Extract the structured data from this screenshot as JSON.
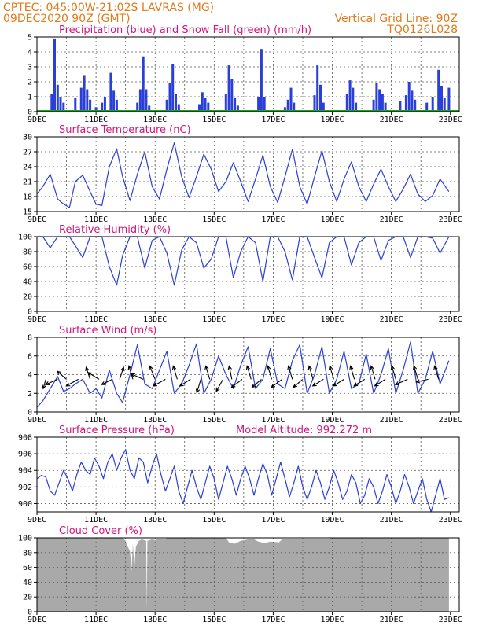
{
  "header": {
    "line1": "CPTEC:   045:00W-21:02S  LAVRAS (MG)",
    "line2": "09DEC2020 90Z (GMT)",
    "grid_note": "Vertical Grid Line: 90Z",
    "code": "TQ0126L028"
  },
  "colors": {
    "header": "#e07a1a",
    "title": "#d4147a",
    "series": "#2a3fd8",
    "snow": "#1aa01a",
    "cloud": "#a9a9a9",
    "grid": "#555555"
  },
  "x_ticks": [
    "9DEC",
    "11DEC",
    "13DEC",
    "15DEC",
    "17DEC",
    "19DEC",
    "21DEC",
    "23DEC"
  ],
  "chart_data": [
    {
      "type": "bar",
      "title": "Precipitation (blue) and Snow Fall (green) (mm/h)",
      "ylim": [
        0,
        5
      ],
      "yticks": [
        0,
        1,
        2,
        3,
        4,
        5
      ],
      "x_days": [
        0.5,
        0.6,
        0.7,
        0.8,
        0.9,
        1.3,
        1.5,
        1.6,
        1.7,
        1.8,
        2.0,
        2.2,
        2.3,
        2.5,
        2.6,
        2.7,
        3.4,
        3.5,
        3.6,
        3.7,
        3.8,
        4.4,
        4.5,
        4.6,
        4.7,
        4.8,
        5.5,
        5.6,
        5.7,
        5.8,
        6.4,
        6.5,
        6.6,
        6.7,
        6.8,
        7.5,
        7.6,
        7.7,
        8.4,
        8.5,
        8.6,
        8.7,
        9.4,
        9.5,
        9.6,
        9.7,
        10.5,
        10.6,
        10.7,
        10.8,
        11.4,
        11.5,
        11.6,
        11.7,
        11.8,
        12.3,
        12.5,
        12.6,
        12.7,
        12.8,
        13.2,
        13.4,
        13.6,
        13.7,
        13.8,
        13.95
      ],
      "values": [
        1.2,
        4.9,
        1.8,
        1.0,
        0.6,
        0.9,
        1.6,
        2.4,
        1.5,
        0.8,
        0.3,
        0.6,
        1.0,
        2.6,
        1.4,
        0.8,
        0.6,
        1.5,
        3.7,
        1.5,
        0.4,
        0.8,
        1.9,
        3.2,
        1.2,
        0.5,
        0.5,
        1.3,
        0.9,
        0.6,
        1.2,
        3.1,
        2.2,
        0.9,
        0.4,
        1.0,
        4.2,
        1.0,
        0.3,
        0.8,
        1.6,
        0.6,
        1.1,
        3.1,
        1.8,
        0.6,
        1.2,
        2.1,
        1.6,
        0.6,
        0.8,
        1.9,
        1.5,
        1.2,
        0.6,
        0.7,
        1.1,
        2.0,
        1.4,
        0.8,
        0.6,
        1.0,
        2.8,
        1.7,
        0.9,
        1.6
      ],
      "snow": 0
    },
    {
      "type": "line",
      "title": "Surface Temperature (nC)",
      "ylim": [
        15,
        30
      ],
      "yticks": [
        15,
        18,
        21,
        24,
        27,
        30
      ],
      "x_days": [
        0.0,
        0.2,
        0.45,
        0.7,
        0.9,
        1.1,
        1.3,
        1.55,
        1.8,
        2.0,
        2.2,
        2.45,
        2.7,
        2.9,
        3.15,
        3.4,
        3.65,
        3.9,
        4.15,
        4.4,
        4.65,
        4.9,
        5.15,
        5.4,
        5.65,
        5.9,
        6.15,
        6.4,
        6.65,
        6.9,
        7.15,
        7.4,
        7.65,
        7.9,
        8.15,
        8.4,
        8.65,
        8.9,
        9.15,
        9.4,
        9.65,
        9.9,
        10.15,
        10.4,
        10.65,
        10.9,
        11.15,
        11.4,
        11.65,
        11.9,
        12.15,
        12.4,
        12.65,
        12.9,
        13.15,
        13.4,
        13.65,
        13.95
      ],
      "values": [
        18.5,
        20.0,
        22.5,
        17.5,
        16.5,
        15.8,
        21.0,
        22.3,
        19.0,
        16.5,
        16.2,
        24.0,
        27.6,
        22.0,
        17.2,
        22.5,
        27.0,
        20.0,
        17.5,
        23.5,
        28.8,
        22.0,
        17.8,
        22.0,
        26.5,
        23.5,
        19.0,
        21.0,
        24.8,
        21.0,
        17.0,
        21.5,
        26.3,
        20.0,
        16.8,
        22.0,
        27.5,
        20.0,
        16.5,
        22.0,
        27.2,
        21.0,
        17.0,
        21.5,
        25.0,
        20.0,
        17.0,
        20.5,
        23.5,
        20.0,
        17.0,
        19.5,
        22.5,
        18.5,
        17.0,
        18.2,
        21.5,
        19.0
      ]
    },
    {
      "type": "line",
      "title": "Relative Humidity (%)",
      "ylim": [
        0,
        100
      ],
      "yticks": [
        0,
        20,
        40,
        60,
        80,
        100
      ],
      "x_days": [
        0.0,
        0.2,
        0.45,
        0.7,
        0.9,
        1.1,
        1.3,
        1.55,
        1.8,
        2.0,
        2.2,
        2.45,
        2.7,
        2.9,
        3.15,
        3.4,
        3.65,
        3.9,
        4.15,
        4.4,
        4.65,
        4.9,
        5.15,
        5.4,
        5.65,
        5.9,
        6.15,
        6.4,
        6.65,
        6.9,
        7.15,
        7.4,
        7.65,
        7.9,
        8.15,
        8.4,
        8.65,
        8.9,
        9.15,
        9.4,
        9.65,
        9.9,
        10.15,
        10.4,
        10.65,
        10.9,
        11.15,
        11.4,
        11.65,
        11.9,
        12.15,
        12.4,
        12.65,
        12.9,
        13.15,
        13.4,
        13.65,
        13.95
      ],
      "values": [
        100,
        100,
        85,
        100,
        100,
        100,
        88,
        72,
        100,
        100,
        100,
        60,
        35,
        75,
        100,
        100,
        58,
        95,
        100,
        78,
        35,
        82,
        100,
        92,
        58,
        70,
        100,
        100,
        45,
        80,
        100,
        92,
        40,
        100,
        100,
        80,
        42,
        100,
        100,
        72,
        45,
        92,
        100,
        100,
        62,
        92,
        100,
        100,
        68,
        95,
        100,
        100,
        72,
        100,
        100,
        98,
        78,
        100
      ]
    },
    {
      "type": "line",
      "title": "Surface Wind (m/s)",
      "ylim": [
        0,
        8
      ],
      "yticks": [
        0,
        2,
        4,
        6,
        8
      ],
      "x_days": [
        0.0,
        0.2,
        0.45,
        0.7,
        0.9,
        1.1,
        1.3,
        1.55,
        1.8,
        2.0,
        2.2,
        2.45,
        2.7,
        2.9,
        3.15,
        3.4,
        3.65,
        3.9,
        4.15,
        4.4,
        4.65,
        4.9,
        5.15,
        5.4,
        5.65,
        5.9,
        6.15,
        6.4,
        6.65,
        6.9,
        7.15,
        7.4,
        7.65,
        7.9,
        8.15,
        8.4,
        8.65,
        8.9,
        9.15,
        9.4,
        9.65,
        9.9,
        10.15,
        10.4,
        10.65,
        10.9,
        11.15,
        11.4,
        11.65,
        11.9,
        12.15,
        12.4,
        12.65,
        12.9,
        13.15,
        13.4,
        13.65,
        13.95
      ],
      "values": [
        0.5,
        1.2,
        2.5,
        3.8,
        2.2,
        2.5,
        3.0,
        3.5,
        2.0,
        2.5,
        1.5,
        4.5,
        2.0,
        1.0,
        4.0,
        7.2,
        3.0,
        2.5,
        4.5,
        6.5,
        2.0,
        3.0,
        5.0,
        7.3,
        2.0,
        3.5,
        6.0,
        4.0,
        2.5,
        5.0,
        7.0,
        2.5,
        3.5,
        6.8,
        3.0,
        2.5,
        5.5,
        7.2,
        2.0,
        4.0,
        7.0,
        2.0,
        3.5,
        6.5,
        2.5,
        3.0,
        6.2,
        2.0,
        4.0,
        6.8,
        2.0,
        4.5,
        7.5,
        2.0,
        3.5,
        6.5,
        3.0,
        5.5
      ],
      "vectors": [
        {
          "day": 0.3,
          "dx": -0.2,
          "dy": 0.7
        },
        {
          "day": 0.7,
          "dx": -0.9,
          "dy": 0.4
        },
        {
          "day": 1.0,
          "dx": -0.7,
          "dy": -0.6
        },
        {
          "day": 1.4,
          "dx": -0.9,
          "dy": 0.5
        },
        {
          "day": 1.8,
          "dx": -0.3,
          "dy": -0.9
        },
        {
          "day": 2.1,
          "dx": -0.8,
          "dy": -0.5
        },
        {
          "day": 2.55,
          "dx": -0.8,
          "dy": 0.4
        },
        {
          "day": 2.8,
          "dx": 0.3,
          "dy": -0.9
        },
        {
          "day": 3.25,
          "dx": -0.3,
          "dy": -1.0
        },
        {
          "day": 3.6,
          "dx": -0.9,
          "dy": -0.4
        },
        {
          "day": 4.0,
          "dx": -0.4,
          "dy": -1.0
        },
        {
          "day": 4.35,
          "dx": -0.9,
          "dy": 0.5
        },
        {
          "day": 4.75,
          "dx": -0.3,
          "dy": -1.0
        },
        {
          "day": 5.2,
          "dx": -0.8,
          "dy": 0.5
        },
        {
          "day": 5.55,
          "dx": -0.3,
          "dy": 1.0
        },
        {
          "day": 5.85,
          "dx": -0.3,
          "dy": -1.0
        },
        {
          "day": 6.3,
          "dx": -0.5,
          "dy": 0.9
        },
        {
          "day": 6.6,
          "dx": -0.2,
          "dy": -1.0
        },
        {
          "day": 6.95,
          "dx": -0.8,
          "dy": 0.6
        },
        {
          "day": 7.25,
          "dx": -0.3,
          "dy": -1.0
        },
        {
          "day": 7.6,
          "dx": -0.7,
          "dy": 0.6
        },
        {
          "day": 7.95,
          "dx": -0.3,
          "dy": -1.0
        },
        {
          "day": 8.3,
          "dx": -0.8,
          "dy": 0.6
        },
        {
          "day": 8.65,
          "dx": -0.3,
          "dy": -1.0
        },
        {
          "day": 9.0,
          "dx": -0.7,
          "dy": 0.6
        },
        {
          "day": 9.35,
          "dx": -0.3,
          "dy": -1.0
        },
        {
          "day": 9.7,
          "dx": -0.8,
          "dy": 0.5
        },
        {
          "day": 10.05,
          "dx": -0.3,
          "dy": -1.0
        },
        {
          "day": 10.4,
          "dx": -0.8,
          "dy": 0.5
        },
        {
          "day": 10.75,
          "dx": -0.3,
          "dy": -1.0
        },
        {
          "day": 11.1,
          "dx": -0.8,
          "dy": 0.5
        },
        {
          "day": 11.45,
          "dx": -0.3,
          "dy": -1.0
        },
        {
          "day": 11.8,
          "dx": -0.8,
          "dy": 0.5
        },
        {
          "day": 12.15,
          "dx": -0.3,
          "dy": -1.0
        },
        {
          "day": 12.55,
          "dx": -0.9,
          "dy": 0.4
        },
        {
          "day": 12.9,
          "dx": -0.3,
          "dy": -1.0
        },
        {
          "day": 13.25,
          "dx": -0.9,
          "dy": 0.2
        },
        {
          "day": 13.6,
          "dx": -0.3,
          "dy": -1.0
        }
      ]
    },
    {
      "type": "line",
      "title": "Surface Pressure (hPa)",
      "annotation": "Model Altitude: 992.272 m",
      "ylim": [
        899,
        908
      ],
      "yticks": [
        900,
        902,
        904,
        906,
        908
      ],
      "x_days": [
        0.0,
        0.15,
        0.3,
        0.45,
        0.6,
        0.75,
        0.9,
        1.05,
        1.2,
        1.35,
        1.5,
        1.65,
        1.8,
        1.95,
        2.1,
        2.25,
        2.4,
        2.55,
        2.7,
        2.85,
        3.0,
        3.15,
        3.3,
        3.45,
        3.6,
        3.75,
        3.9,
        4.05,
        4.2,
        4.35,
        4.5,
        4.65,
        4.8,
        4.95,
        5.1,
        5.25,
        5.4,
        5.55,
        5.7,
        5.85,
        6.0,
        6.15,
        6.3,
        6.45,
        6.6,
        6.75,
        6.9,
        7.05,
        7.2,
        7.35,
        7.5,
        7.65,
        7.8,
        7.95,
        8.1,
        8.25,
        8.4,
        8.55,
        8.7,
        8.85,
        9.0,
        9.15,
        9.3,
        9.45,
        9.6,
        9.75,
        9.9,
        10.05,
        10.2,
        10.35,
        10.5,
        10.65,
        10.8,
        10.95,
        11.1,
        11.25,
        11.4,
        11.55,
        11.7,
        11.85,
        12.0,
        12.15,
        12.3,
        12.45,
        12.6,
        12.75,
        12.9,
        13.05,
        13.2,
        13.35,
        13.5,
        13.65,
        13.8,
        13.95
      ],
      "values": [
        903.0,
        903.4,
        903.2,
        901.5,
        901.0,
        902.5,
        904.0,
        903.0,
        901.5,
        903.5,
        905.0,
        904.0,
        903.5,
        905.5,
        904.5,
        903.0,
        905.0,
        906.0,
        904.0,
        905.5,
        906.5,
        904.0,
        903.0,
        905.5,
        905.0,
        902.5,
        904.5,
        906.0,
        903.5,
        901.5,
        903.0,
        904.5,
        901.5,
        900.0,
        902.0,
        904.0,
        902.0,
        900.5,
        902.5,
        904.5,
        903.0,
        900.5,
        902.5,
        904.5,
        903.0,
        901.0,
        903.0,
        904.5,
        903.0,
        901.0,
        903.0,
        904.8,
        903.5,
        901.0,
        903.0,
        905.0,
        903.0,
        900.8,
        902.5,
        904.5,
        902.0,
        900.5,
        902.0,
        904.0,
        902.5,
        900.5,
        902.0,
        904.0,
        902.5,
        900.5,
        901.5,
        903.5,
        902.5,
        900.0,
        901.0,
        903.0,
        902.0,
        900.0,
        901.5,
        903.5,
        902.0,
        900.0,
        901.5,
        903.5,
        902.0,
        900.0,
        901.5,
        903.0,
        900.5,
        899.0,
        901.0,
        903.0,
        900.5,
        900.7
      ]
    },
    {
      "type": "area",
      "title": "Cloud Cover (%)",
      "ylim": [
        0,
        100
      ],
      "yticks": [
        0,
        20,
        40,
        60,
        80,
        100
      ],
      "x_days": [
        0.0,
        2.9,
        3.0,
        3.05,
        3.15,
        3.2,
        3.25,
        3.3,
        3.35,
        3.45,
        3.55,
        3.7,
        3.72,
        3.74,
        3.9,
        4.0,
        4.2,
        4.3,
        4.4,
        4.6,
        6.4,
        6.5,
        6.7,
        6.9,
        7.3,
        7.5,
        7.7,
        7.9,
        8.2,
        8.3,
        9.8,
        10.0,
        13.95
      ],
      "values": [
        100,
        100,
        96,
        90,
        82,
        55,
        92,
        60,
        88,
        96,
        98,
        96,
        2,
        96,
        98,
        97,
        99,
        97,
        100,
        100,
        100,
        94,
        92,
        96,
        99,
        95,
        93,
        95,
        94,
        98,
        98,
        100,
        100
      ]
    }
  ]
}
